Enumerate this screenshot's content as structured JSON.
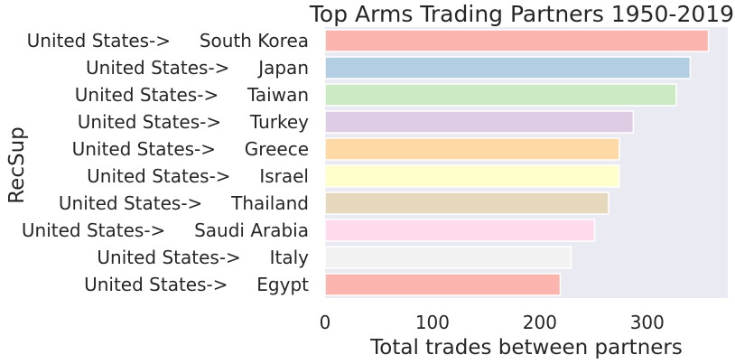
{
  "chart_data": {
    "type": "bar",
    "orientation": "horizontal",
    "title": "Top Arms Trading Partners 1950-2019",
    "xlabel": "Total trades between partners",
    "ylabel": "RecSup",
    "xlim": [
      0,
      375
    ],
    "xticks": [
      0,
      100,
      200,
      300
    ],
    "categories": [
      "United States->     South Korea",
      "United States->     Japan",
      "United States->     Taiwan",
      "United States->     Turkey",
      "United States->     Greece",
      "United States->     Israel",
      "United States->     Thailand",
      "United States->     Saudi Arabia",
      "United States->     Italy",
      "United States->     Egypt"
    ],
    "values": [
      357,
      340,
      327,
      287,
      274,
      274,
      264,
      251,
      229,
      219
    ],
    "colors": [
      "#fbb4ae",
      "#b3cde3",
      "#ccebc5",
      "#decbe4",
      "#fed9a6",
      "#ffffcc",
      "#e5d8bd",
      "#fddaec",
      "#f2f2f2",
      "#fbb4ae"
    ],
    "background": "#eaeaf2",
    "grid": false
  }
}
